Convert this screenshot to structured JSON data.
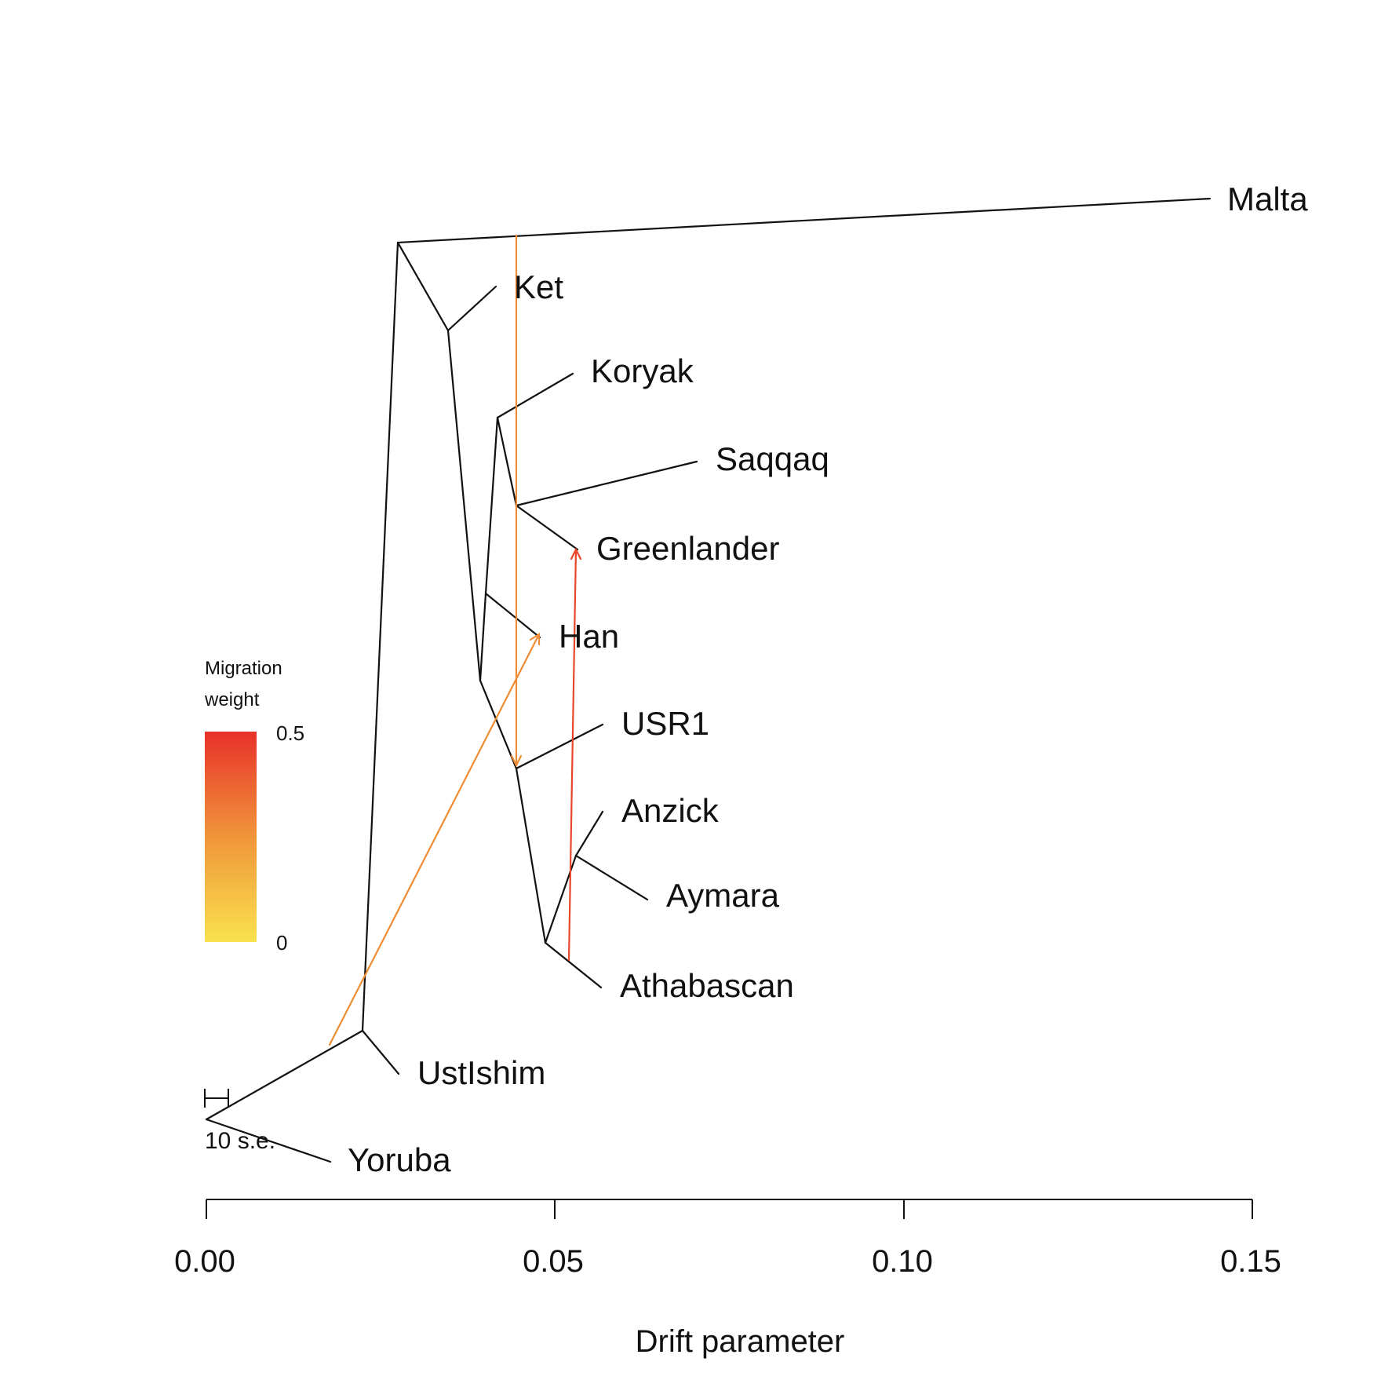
{
  "tree": {
    "populations": [
      "Malta",
      "Ket",
      "Koryak",
      "Saqqaq",
      "Greenlander",
      "Han",
      "USR1",
      "Anzick",
      "Aymara",
      "Athabascan",
      "UstIshim",
      "Yoruba"
    ],
    "migration_edges": [
      {
        "from": "stem of Saqqaq / Greenlander",
        "to": "stem of USR1 and Native Americans",
        "weight_level": "moderate",
        "color": "#ef8c33"
      },
      {
        "from": "stem of UstIshim lineage",
        "to": "Han",
        "weight_level": "moderate",
        "color": "#ef8c33"
      },
      {
        "from": "Athabascan",
        "to": "Greenlander",
        "weight_level": "high",
        "color": "#e8452a"
      }
    ]
  },
  "axis": {
    "xlabel": "Drift parameter",
    "ticks": [
      0.0,
      0.05,
      0.1,
      0.15
    ],
    "tick_labels": [
      "0.00",
      "0.05",
      "0.10",
      "0.15"
    ]
  },
  "legend": {
    "title_line1": "Migration",
    "title_line2": "weight",
    "max_label": "0.5",
    "min_label": "0",
    "color_low": "#f9e24d",
    "color_mid": "#f0953a",
    "color_high": "#e8312a"
  },
  "scale_bar": {
    "label": "10 s.e."
  }
}
